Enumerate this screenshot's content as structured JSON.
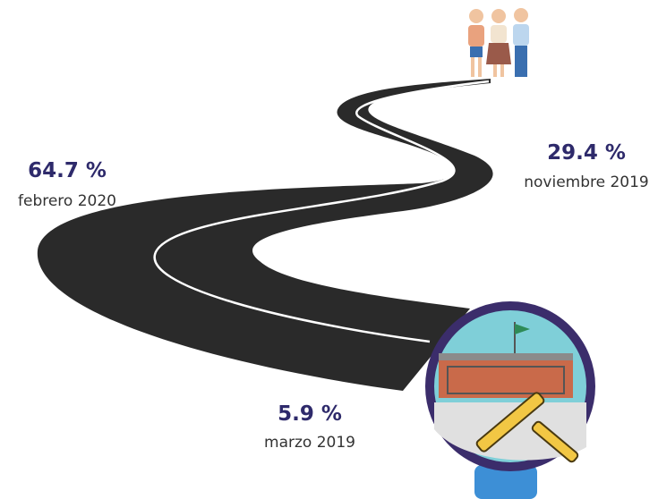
{
  "milestones": [
    {
      "value": "64.7 %",
      "date": "febrero 2020"
    },
    {
      "value": "29.4 %",
      "date": "noviembre 2019"
    },
    {
      "value": "5.9 %",
      "date": "marzo 2019"
    }
  ]
}
